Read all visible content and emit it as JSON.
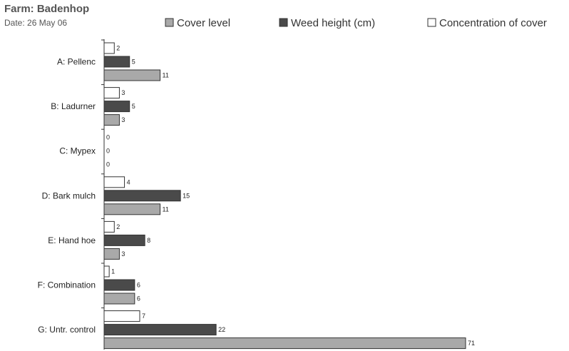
{
  "header": {
    "title": "Farm: Badenhop",
    "subtitle": "Date: 26 May 06"
  },
  "colors": {
    "cover_level": "#a9a9a9",
    "weed_height": "#4a4a4a",
    "concentration": "#ffffff",
    "stroke": "#333333",
    "axis": "#333333"
  },
  "chart_data": {
    "type": "bar",
    "orientation": "horizontal",
    "categories": [
      "A: Pellenc",
      "B: Ladurner",
      "C: Mypex",
      "D: Bark mulch",
      "E: Hand hoe",
      "F: Combination",
      "G: Untr. control"
    ],
    "series": [
      {
        "name": "Concentration of cover",
        "values": [
          2,
          3,
          0,
          4,
          2,
          1,
          7
        ]
      },
      {
        "name": "Weed height (cm)",
        "values": [
          5,
          5,
          0,
          15,
          8,
          6,
          22
        ]
      },
      {
        "name": "Cover level",
        "values": [
          11,
          3,
          0,
          11,
          3,
          6,
          71
        ]
      }
    ],
    "legend_order": [
      "Cover level",
      "Weed height (cm)",
      "Concentration of cover"
    ],
    "legend_position": "top",
    "xlim": [
      0,
      71
    ],
    "grid": false
  }
}
